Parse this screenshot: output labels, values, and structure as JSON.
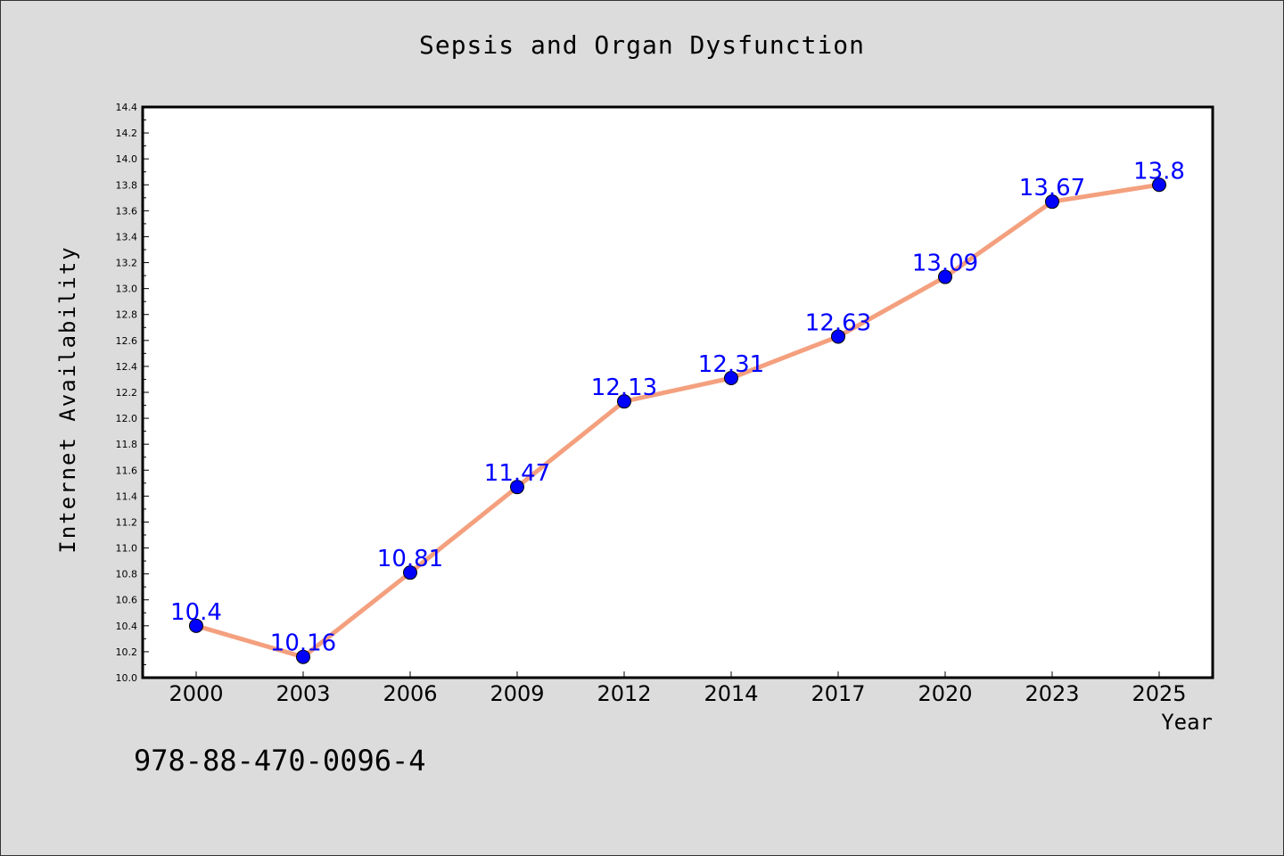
{
  "chart_data": {
    "type": "line",
    "title": "Sepsis and Organ Dysfunction",
    "xlabel": "Year",
    "ylabel": "Internet Availability",
    "categories": [
      "2000",
      "2003",
      "2006",
      "2009",
      "2012",
      "2014",
      "2017",
      "2020",
      "2023",
      "2025"
    ],
    "series": [
      {
        "values": [
          10.4,
          10.16,
          10.81,
          11.47,
          12.13,
          12.31,
          12.63,
          13.09,
          13.67,
          13.8
        ]
      }
    ],
    "ylim": [
      10.0,
      14.4
    ],
    "yticks": [
      "10.0",
      "10.2",
      "10.4",
      "10.6",
      "10.8",
      "11.0",
      "11.2",
      "11.4",
      "11.6",
      "11.8",
      "12.0",
      "12.2",
      "12.4",
      "12.6",
      "12.8",
      "13.0",
      "13.2",
      "13.4",
      "13.6",
      "13.8",
      "14.0",
      "14.2",
      "14.4"
    ],
    "grid": false,
    "data_labels": true,
    "line_color": "#f4a07e",
    "marker_color": "#0000ff",
    "label_color": "#0000ff"
  },
  "footer_text": "978-88-470-0096-4"
}
